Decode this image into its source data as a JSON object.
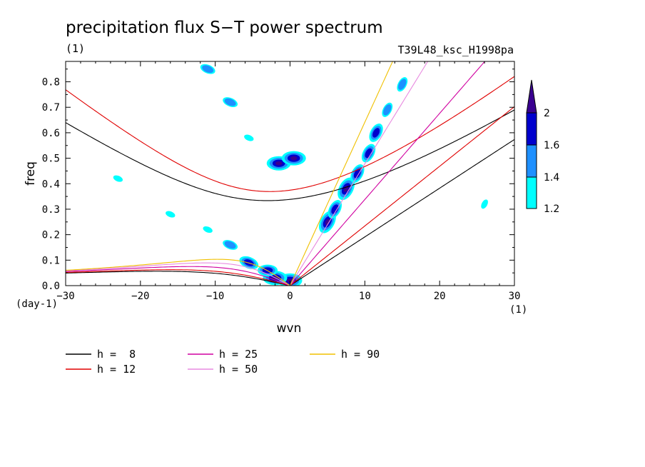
{
  "chart_data": {
    "type": "contour",
    "title": "precipitation flux S−T power spectrum",
    "subtitle_left": "(1)",
    "subtitle_right": "T39L48_ksc_H1998pa",
    "xlabel": "wvn",
    "ylabel": "freq",
    "x_unit": "(1)",
    "y_unit": "(day-1)",
    "xlim": [
      -30,
      30
    ],
    "ylim": [
      0,
      0.88
    ],
    "xticks": [
      -30,
      -20,
      -10,
      0,
      10,
      20,
      30
    ],
    "yticks": [
      0.0,
      0.1,
      0.2,
      0.3,
      0.4,
      0.5,
      0.6,
      0.7,
      0.8
    ],
    "x_tick_labels": [
      "−30",
      "−20",
      "−10",
      "0",
      "10",
      "20",
      "30"
    ],
    "y_tick_labels": [
      "0.0",
      "0.1",
      "0.2",
      "0.3",
      "0.4",
      "0.5",
      "0.6",
      "0.7",
      "0.8"
    ],
    "colorbar": {
      "levels": [
        "1.2",
        "1.4",
        "1.6",
        "2"
      ],
      "colors": [
        "#00ffff",
        "#1e90ff",
        "#0000cd",
        "#3a0090"
      ]
    },
    "dispersion_curves": [
      {
        "label": "h =  8",
        "h": 8,
        "color": "#000000"
      },
      {
        "label": "h = 12",
        "h": 12,
        "color": "#e00000"
      },
      {
        "label": "h = 25",
        "h": 25,
        "color": "#d000a0"
      },
      {
        "label": "h = 50",
        "h": 50,
        "color": "#e88ae0"
      },
      {
        "label": "h = 90",
        "h": 90,
        "color": "#f0c000"
      }
    ],
    "spectral_peaks": [
      {
        "wvn": -1.5,
        "freq": 0.48,
        "level": 4
      },
      {
        "wvn": 0.5,
        "freq": 0.5,
        "level": 4
      },
      {
        "wvn": 0,
        "freq": 0.02,
        "level": 4
      },
      {
        "wvn": -2,
        "freq": 0.03,
        "level": 4
      },
      {
        "wvn": -3,
        "freq": 0.06,
        "level": 3
      },
      {
        "wvn": -5.5,
        "freq": 0.09,
        "level": 3
      },
      {
        "wvn": -8,
        "freq": 0.16,
        "level": 2
      },
      {
        "wvn": -11,
        "freq": 0.22,
        "level": 1
      },
      {
        "wvn": -16,
        "freq": 0.28,
        "level": 1
      },
      {
        "wvn": 5,
        "freq": 0.25,
        "level": 4
      },
      {
        "wvn": 6,
        "freq": 0.3,
        "level": 3
      },
      {
        "wvn": 7.5,
        "freq": 0.38,
        "level": 4
      },
      {
        "wvn": 9,
        "freq": 0.44,
        "level": 3
      },
      {
        "wvn": 10.5,
        "freq": 0.52,
        "level": 3
      },
      {
        "wvn": 11.5,
        "freq": 0.6,
        "level": 3
      },
      {
        "wvn": 13,
        "freq": 0.69,
        "level": 2
      },
      {
        "wvn": 15,
        "freq": 0.79,
        "level": 2
      },
      {
        "wvn": -11,
        "freq": 0.85,
        "level": 2
      },
      {
        "wvn": -8,
        "freq": 0.72,
        "level": 2
      },
      {
        "wvn": -5.5,
        "freq": 0.58,
        "level": 1
      },
      {
        "wvn": 26,
        "freq": 0.32,
        "level": 1
      },
      {
        "wvn": -23,
        "freq": 0.42,
        "level": 1
      }
    ]
  }
}
